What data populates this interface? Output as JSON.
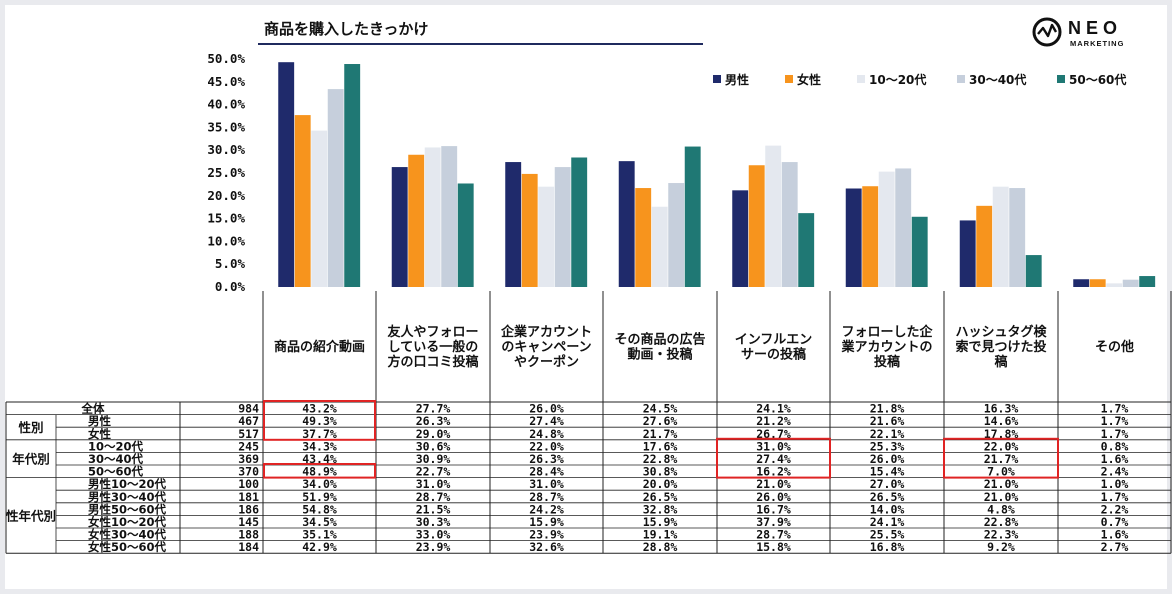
{
  "title": "商品を購入したきっかけ",
  "logo": {
    "name": "NEO",
    "sub": "MARKETING"
  },
  "chart_data": {
    "type": "bar",
    "categories": [
      "商品の紹介動画",
      "友人やフォローしている一般の方の口コミ投稿",
      "企業アカウントのキャンペーンやクーポン",
      "その商品の広告動画・投稿",
      "インフルエンサーの投稿",
      "フォローした企業アカウントの投稿",
      "ハッシュタグ検索で見つけた投稿",
      "その他"
    ],
    "category_lines": [
      [
        "商品の紹介動画"
      ],
      [
        "友人やフォロー",
        "している一般の",
        "方の口コミ投稿"
      ],
      [
        "企業アカウント",
        "のキャンペーン",
        "やクーポン"
      ],
      [
        "その商品の広告",
        "動画・投稿"
      ],
      [
        "インフルエン",
        "サーの投稿"
      ],
      [
        "フォローした企",
        "業アカウントの",
        "投稿"
      ],
      [
        "ハッシュタグ検",
        "索で見つけた投",
        "稿"
      ],
      [
        "その他"
      ]
    ],
    "series": [
      {
        "name": "男性",
        "color": "#1f2a6b",
        "values": [
          49.3,
          26.3,
          27.4,
          27.6,
          21.2,
          21.6,
          14.6,
          1.7
        ]
      },
      {
        "name": "女性",
        "color": "#f7941d",
        "values": [
          37.7,
          29.0,
          24.8,
          21.7,
          26.7,
          22.1,
          17.8,
          1.7
        ]
      },
      {
        "name": "10～20代",
        "color": "#e4e8ef",
        "values": [
          34.3,
          30.6,
          22.0,
          17.6,
          31.0,
          25.3,
          22.0,
          0.8
        ]
      },
      {
        "name": "30～40代",
        "color": "#c6cfdc",
        "values": [
          43.4,
          30.9,
          26.3,
          22.8,
          27.4,
          26.0,
          21.7,
          1.6
        ]
      },
      {
        "name": "50～60代",
        "color": "#1f7874",
        "values": [
          48.9,
          22.7,
          28.4,
          30.8,
          16.2,
          15.4,
          7.0,
          2.4
        ]
      }
    ],
    "yticks": [
      "50.0%",
      "45.0%",
      "40.0%",
      "35.0%",
      "30.0%",
      "25.0%",
      "20.0%",
      "15.0%",
      "10.0%",
      "5.0%",
      "0.0%"
    ],
    "ylim": [
      0,
      50
    ],
    "legend": "top-right"
  },
  "table": {
    "groups": [
      {
        "label": "",
        "rows": [
          {
            "label": "全体",
            "n": "984",
            "values": [
              "43.2%",
              "27.7%",
              "26.0%",
              "24.5%",
              "24.1%",
              "21.8%",
              "16.3%",
              "1.7%"
            ]
          }
        ]
      },
      {
        "label": "性別",
        "rows": [
          {
            "label": "男性",
            "n": "467",
            "values": [
              "49.3%",
              "26.3%",
              "27.4%",
              "27.6%",
              "21.2%",
              "21.6%",
              "14.6%",
              "1.7%"
            ]
          },
          {
            "label": "女性",
            "n": "517",
            "values": [
              "37.7%",
              "29.0%",
              "24.8%",
              "21.7%",
              "26.7%",
              "22.1%",
              "17.8%",
              "1.7%"
            ]
          }
        ]
      },
      {
        "label": "年代別",
        "rows": [
          {
            "label": "10～20代",
            "n": "245",
            "values": [
              "34.3%",
              "30.6%",
              "22.0%",
              "17.6%",
              "31.0%",
              "25.3%",
              "22.0%",
              "0.8%"
            ]
          },
          {
            "label": "30～40代",
            "n": "369",
            "values": [
              "43.4%",
              "30.9%",
              "26.3%",
              "22.8%",
              "27.4%",
              "26.0%",
              "21.7%",
              "1.6%"
            ]
          },
          {
            "label": "50～60代",
            "n": "370",
            "values": [
              "48.9%",
              "22.7%",
              "28.4%",
              "30.8%",
              "16.2%",
              "15.4%",
              "7.0%",
              "2.4%"
            ]
          }
        ]
      },
      {
        "label": "性年代別",
        "rows": [
          {
            "label": "男性10～20代",
            "n": "100",
            "values": [
              "34.0%",
              "31.0%",
              "31.0%",
              "20.0%",
              "21.0%",
              "27.0%",
              "21.0%",
              "1.0%"
            ]
          },
          {
            "label": "男性30～40代",
            "n": "181",
            "values": [
              "51.9%",
              "28.7%",
              "28.7%",
              "26.5%",
              "26.0%",
              "26.5%",
              "21.0%",
              "1.7%"
            ]
          },
          {
            "label": "男性50～60代",
            "n": "186",
            "values": [
              "54.8%",
              "21.5%",
              "24.2%",
              "32.8%",
              "16.7%",
              "14.0%",
              "4.8%",
              "2.2%"
            ]
          },
          {
            "label": "女性10～20代",
            "n": "145",
            "values": [
              "34.5%",
              "30.3%",
              "15.9%",
              "15.9%",
              "37.9%",
              "24.1%",
              "22.8%",
              "0.7%"
            ]
          },
          {
            "label": "女性30～40代",
            "n": "188",
            "values": [
              "35.1%",
              "33.0%",
              "23.9%",
              "19.1%",
              "28.7%",
              "25.5%",
              "22.3%",
              "1.6%"
            ]
          },
          {
            "label": "女性50～60代",
            "n": "184",
            "values": [
              "42.9%",
              "23.9%",
              "32.6%",
              "28.8%",
              "15.8%",
              "16.8%",
              "9.2%",
              "2.7%"
            ]
          }
        ]
      }
    ]
  },
  "highlight_color": "#e02424"
}
